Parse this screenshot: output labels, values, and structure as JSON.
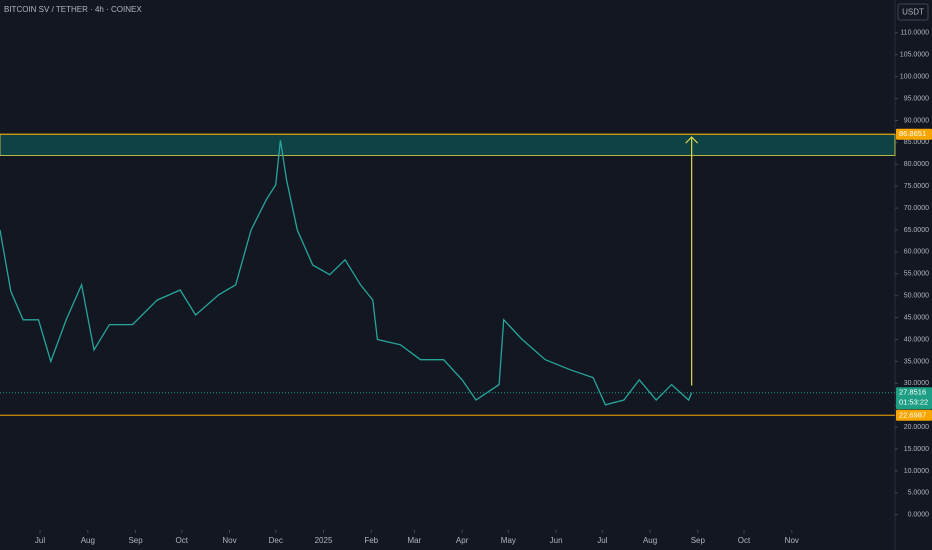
{
  "chart_data": {
    "type": "line",
    "title": "BITCOIN SV / TETHER · 4h · COINEX",
    "currency": "USDT",
    "color": "#26a69a",
    "x": [
      "2024-06-05",
      "2024-06-12",
      "2024-06-20",
      "2024-06-30",
      "2024-07-08",
      "2024-07-18",
      "2024-07-28",
      "2024-08-05",
      "2024-08-15",
      "2024-08-30",
      "2024-09-15",
      "2024-09-30",
      "2024-10-10",
      "2024-10-25",
      "2024-11-05",
      "2024-11-15",
      "2024-11-25",
      "2024-12-01",
      "2024-12-04",
      "2024-12-08",
      "2024-12-15",
      "2024-12-25",
      "2025-01-05",
      "2025-01-15",
      "2025-01-25",
      "2025-02-02",
      "2025-02-05",
      "2025-02-20",
      "2025-03-05",
      "2025-03-20",
      "2025-04-01",
      "2025-04-10",
      "2025-04-25",
      "2025-04-28",
      "2025-05-10",
      "2025-05-25",
      "2025-06-10",
      "2025-06-25",
      "2025-07-03",
      "2025-07-15",
      "2025-07-25",
      "2025-08-05",
      "2025-08-15",
      "2025-08-26",
      "2025-08-28"
    ],
    "values": [
      65,
      51,
      44.5,
      44.5,
      35,
      44.5,
      52.5,
      37.6,
      43.4,
      43.4,
      49,
      51.3,
      45.6,
      50.2,
      52.5,
      65,
      72,
      75.3,
      85.5,
      76.5,
      65,
      57,
      54.8,
      58.2,
      52.5,
      49,
      40,
      38.8,
      35.4,
      35.4,
      30.8,
      26.2,
      29.7,
      44.5,
      40,
      35.4,
      33.1,
      31.3,
      25.1,
      26.2,
      30.8,
      26.2,
      29.7,
      26.2,
      27.8516
    ],
    "xlim": [
      "2024-06-05",
      "2026-01-07"
    ],
    "xticks": [
      {
        "value": "2024-07-01",
        "label": "Jul"
      },
      {
        "value": "2024-08-01",
        "label": "Aug"
      },
      {
        "value": "2024-09-01",
        "label": "Sep"
      },
      {
        "value": "2024-10-01",
        "label": "Oct"
      },
      {
        "value": "2024-11-01",
        "label": "Nov"
      },
      {
        "value": "2024-12-01",
        "label": "Dec"
      },
      {
        "value": "2025-01-01",
        "label": "2025"
      },
      {
        "value": "2025-02-01",
        "label": "Feb"
      },
      {
        "value": "2025-03-01",
        "label": "Mar"
      },
      {
        "value": "2025-04-01",
        "label": "Apr"
      },
      {
        "value": "2025-05-01",
        "label": "May"
      },
      {
        "value": "2025-06-01",
        "label": "Jun"
      },
      {
        "value": "2025-07-01",
        "label": "Jul"
      },
      {
        "value": "2025-08-01",
        "label": "Aug"
      },
      {
        "value": "2025-09-01",
        "label": "Sep"
      },
      {
        "value": "2025-10-01",
        "label": "Oct"
      },
      {
        "value": "2025-11-01",
        "label": "Nov"
      }
    ],
    "ylim": [
      -1.2,
      117.5
    ],
    "yticks": [
      {
        "value": 0,
        "label": "0.0000"
      },
      {
        "value": 5,
        "label": "5.0000"
      },
      {
        "value": 10,
        "label": "10.0000"
      },
      {
        "value": 15,
        "label": "15.0000"
      },
      {
        "value": 20,
        "label": "20.0000"
      },
      {
        "value": 25,
        "label": "25.0000"
      },
      {
        "value": 30,
        "label": "30.0000"
      },
      {
        "value": 35,
        "label": "35.0000"
      },
      {
        "value": 40,
        "label": "40.0000"
      },
      {
        "value": 45,
        "label": "45.0000"
      },
      {
        "value": 50,
        "label": "50.0000"
      },
      {
        "value": 55,
        "label": "55.0000"
      },
      {
        "value": 60,
        "label": "60.0000"
      },
      {
        "value": 65,
        "label": "65.0000"
      },
      {
        "value": 70,
        "label": "70.0000"
      },
      {
        "value": 75,
        "label": "75.0000"
      },
      {
        "value": 80,
        "label": "80.0000"
      },
      {
        "value": 85,
        "label": "85.0000"
      },
      {
        "value": 90,
        "label": "90.0000"
      },
      {
        "value": 95,
        "label": "95.0000"
      },
      {
        "value": 100,
        "label": "100.0000"
      },
      {
        "value": 105,
        "label": "105.0000"
      },
      {
        "value": 110,
        "label": "110.0000"
      }
    ],
    "zone": [
      82,
      86.8651
    ],
    "levels": [
      86.8651,
      22.6987
    ],
    "arrow": {
      "x": "2025-08-28",
      "from": 29.5,
      "to": 86.2
    },
    "price_labels": [
      {
        "value": 86.8651,
        "label": "86.8651",
        "color": "#f7a600"
      },
      {
        "value": 27.8516,
        "label": "27.8516",
        "color": "#1e9e84",
        "countdown": "01:53:22"
      },
      {
        "value": 22.6987,
        "label": "22.6987",
        "color": "#f7a600"
      }
    ]
  }
}
